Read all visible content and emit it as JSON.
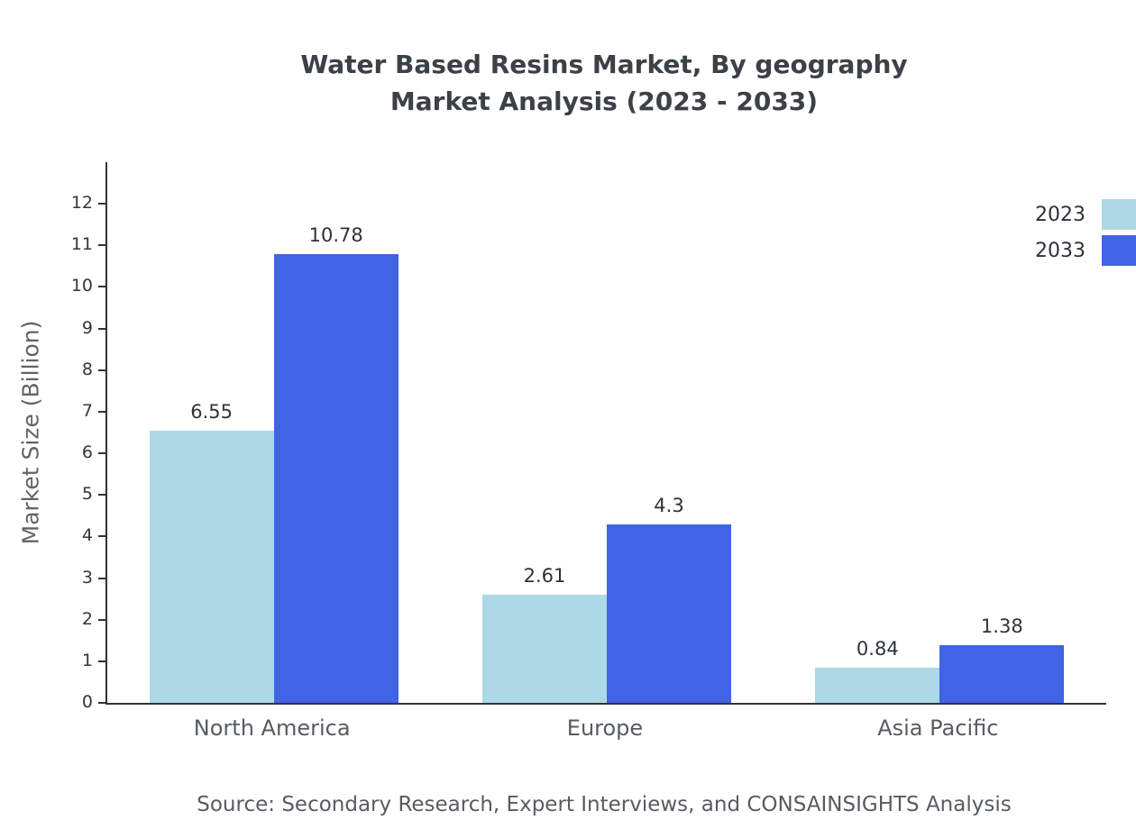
{
  "title": {
    "line1": "Water Based Resins Market, By geography",
    "line2": "Market Analysis (2023 - 2033)"
  },
  "chart_data": {
    "type": "bar",
    "title": "Water Based Resins Market, By geography Market Analysis (2023 - 2033)",
    "categories": [
      "North America",
      "Europe",
      "Asia Pacific"
    ],
    "series": [
      {
        "name": "2023",
        "color": "#ADD8E6",
        "values": [
          6.55,
          2.61,
          0.84
        ]
      },
      {
        "name": "2033",
        "color": "#4064E3",
        "values": [
          10.78,
          4.3,
          1.38
        ]
      }
    ],
    "xlabel": "",
    "ylabel": "Market Size (Billion)",
    "ylim": [
      0,
      13
    ],
    "yticks": [
      0,
      1,
      2,
      3,
      4,
      5,
      6,
      7,
      8,
      9,
      10,
      11,
      12
    ],
    "grid": false,
    "legend_position": "top-right"
  },
  "source": "Source: Secondary Research, Expert Interviews, and CONSAINSIGHTS Analysis"
}
